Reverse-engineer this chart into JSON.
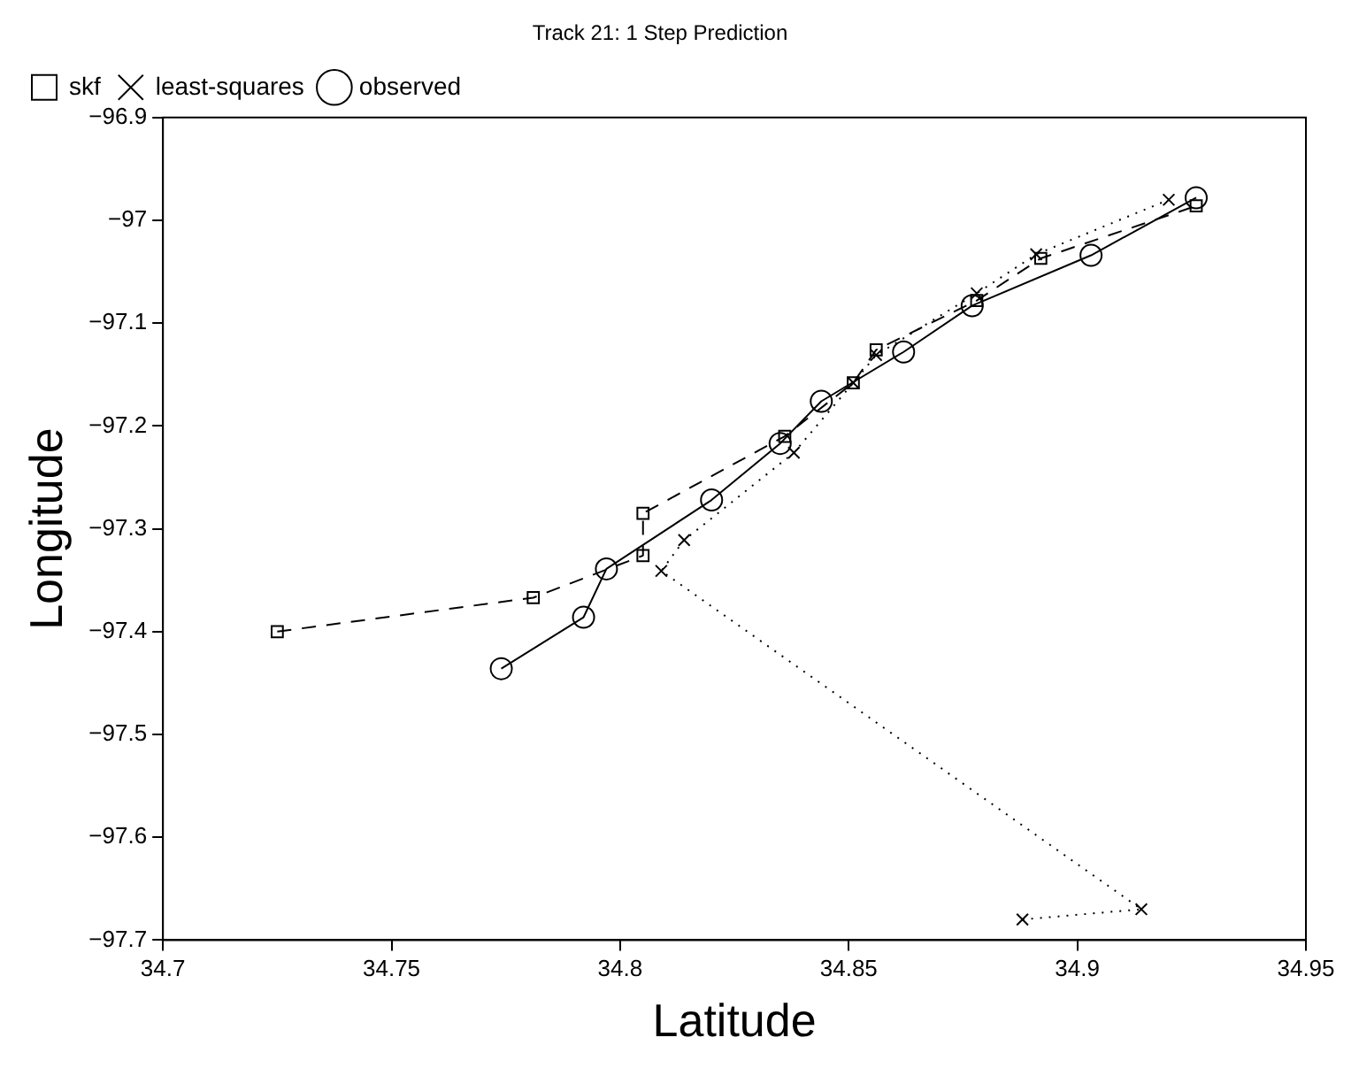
{
  "chart_data": {
    "type": "line",
    "title": "Track 21: 1 Step Prediction",
    "xlabel": "Latitude",
    "ylabel": "Longitude",
    "xlim": [
      34.7,
      34.95
    ],
    "xticks": [
      34.7,
      34.75,
      34.8,
      34.85,
      34.9,
      34.95
    ],
    "ylim": [
      -97.7,
      -96.9
    ],
    "yticks": [
      -96.9,
      -97,
      -97.1,
      -97.2,
      -97.3,
      -97.4,
      -97.5,
      -97.6,
      -97.7
    ],
    "grid": false,
    "legend": "top left",
    "series": [
      {
        "name": "skf",
        "color": "#000000",
        "line_style": "dashed",
        "marker": "square",
        "x": [
          34.725,
          34.781,
          34.805,
          34.805,
          34.836,
          34.851,
          34.856,
          34.878,
          34.892,
          34.926
        ],
        "values": [
          -97.4,
          -97.367,
          -97.326,
          -97.285,
          -97.21,
          -97.158,
          -97.126,
          -97.078,
          -97.037,
          -96.986
        ]
      },
      {
        "name": "least-squares",
        "color": "#000000",
        "line_style": "dotted",
        "marker": "cross",
        "x": [
          34.888,
          34.914,
          34.809,
          34.814,
          34.838,
          34.851,
          34.856,
          34.878,
          34.891,
          34.92
        ],
        "values": [
          -97.68,
          -97.67,
          -97.341,
          -97.311,
          -97.226,
          -97.158,
          -97.131,
          -97.071,
          -97.033,
          -96.98
        ]
      },
      {
        "name": "observed",
        "color": "#000000",
        "line_style": "solid",
        "marker": "circle",
        "x": [
          34.774,
          34.792,
          34.797,
          34.82,
          34.835,
          34.844,
          34.862,
          34.877,
          34.903,
          34.926
        ],
        "values": [
          -97.436,
          -97.386,
          -97.339,
          -97.272,
          -97.217,
          -97.176,
          -97.128,
          -97.083,
          -97.034,
          -96.978
        ]
      }
    ]
  }
}
